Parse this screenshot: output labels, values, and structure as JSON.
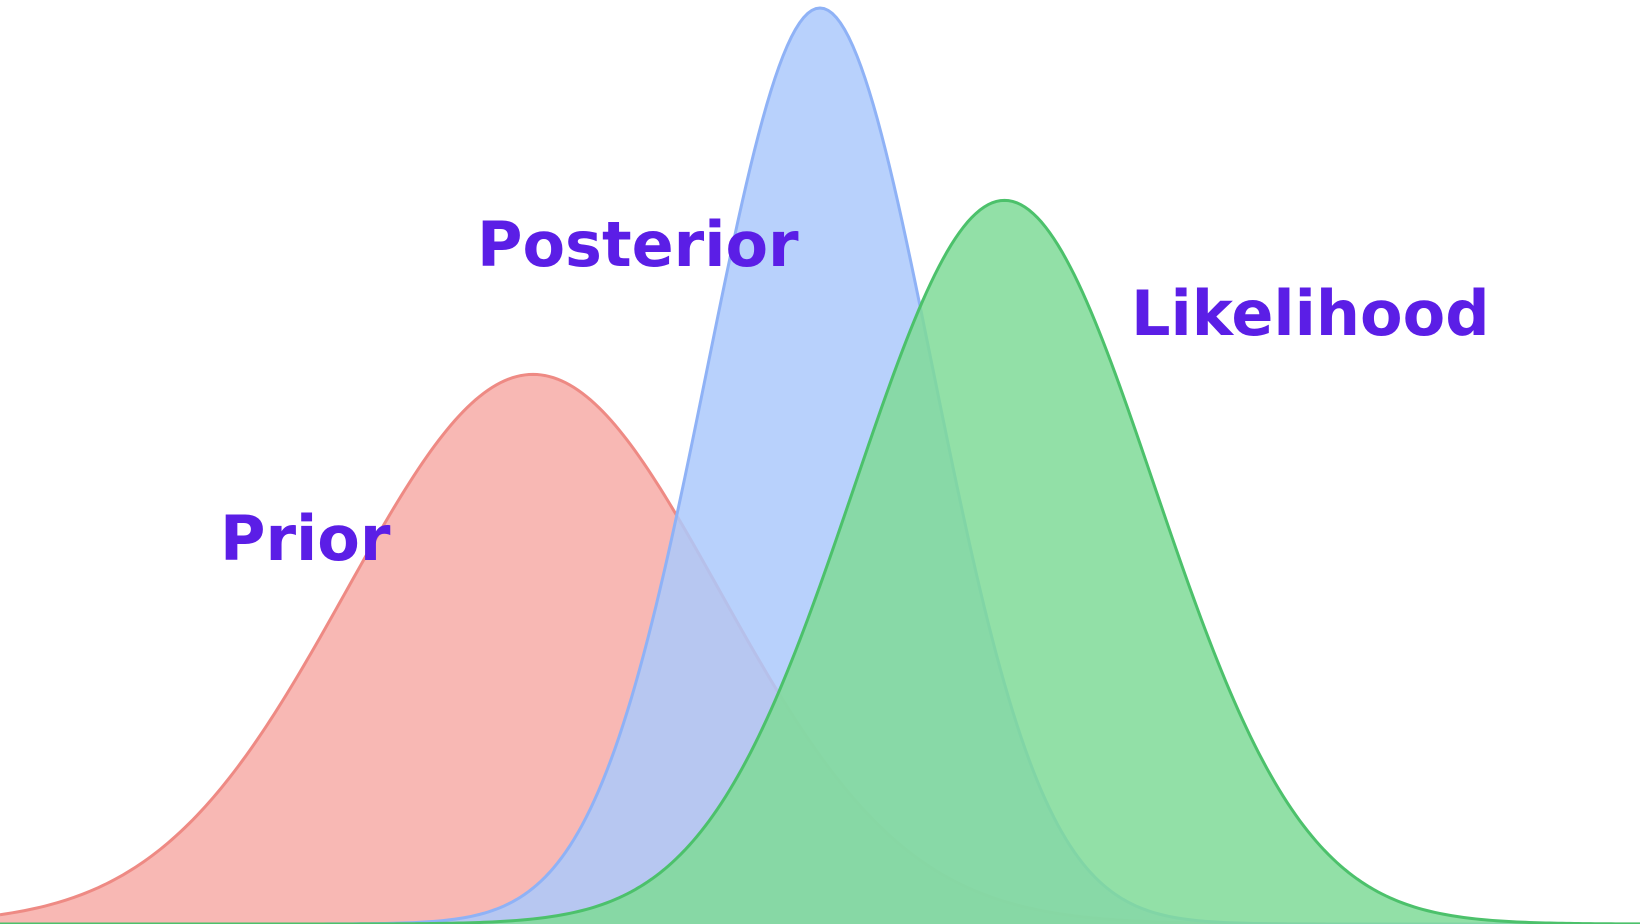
{
  "chart_data": {
    "type": "area",
    "title": "",
    "xlabel": "",
    "ylabel": "",
    "grid": false,
    "axes_visible": false,
    "legend": "none",
    "xlim": [
      -4,
      4
    ],
    "ylim": [
      0,
      1.0
    ],
    "series": [
      {
        "name": "Prior",
        "distribution": "normal",
        "mean": -1.4,
        "std": 0.91,
        "peak_density": 0.6,
        "fill_color": "#f8b8b4",
        "line_color": "#ee8a84"
      },
      {
        "name": "Posterior",
        "distribution": "normal",
        "mean": 0.0,
        "std": 0.55,
        "peak_density": 1.0,
        "fill_color": "#acc9fb",
        "line_color": "#8fb2f6"
      },
      {
        "name": "Likelihood",
        "distribution": "normal",
        "mean": 0.9,
        "std": 0.73,
        "peak_density": 0.79,
        "fill_color": "#7fda98",
        "line_color": "#4cc16b"
      }
    ]
  }
}
